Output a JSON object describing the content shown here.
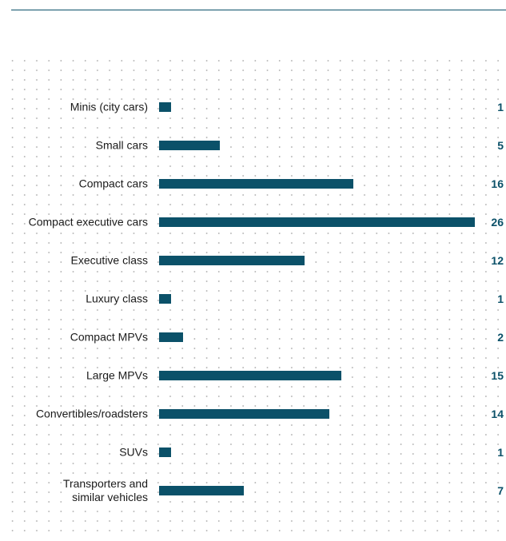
{
  "chart_data": {
    "type": "bar",
    "orientation": "horizontal",
    "categories": [
      "Minis (city cars)",
      "Small cars",
      "Compact cars",
      "Compact executive cars",
      "Executive class",
      "Luxury class",
      "Compact MPVs",
      "Large MPVs",
      "Convertibles/roadsters",
      "SUVs",
      "Transporters and\nsimilar vehicles"
    ],
    "values": [
      1,
      5,
      16,
      26,
      12,
      1,
      2,
      15,
      14,
      1,
      7
    ],
    "color": "#0b5169",
    "xlim": [
      0,
      26
    ]
  }
}
